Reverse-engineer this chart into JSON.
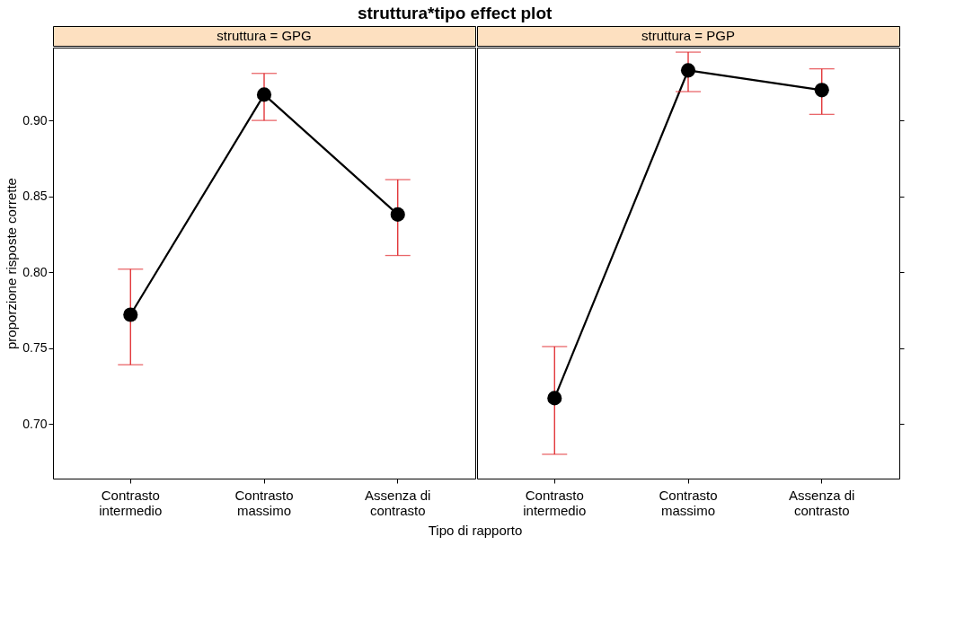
{
  "chart_data": [
    {
      "type": "line",
      "title": "struttura*tipo effect plot",
      "subtitle": "struttura = GPG",
      "xlabel": "Tipo di rapporto",
      "ylabel": "proporzione risposte corrette",
      "categories": [
        "Contrasto intermedio",
        "Contrasto massimo",
        "Assenza di contrasto"
      ],
      "series": [
        {
          "color": "#000000",
          "values": [
            0.772,
            0.917,
            0.838
          ],
          "errors": [
            [
              0.739,
              0.802
            ],
            [
              0.9,
              0.931
            ],
            [
              0.811,
              0.861
            ]
          ]
        }
      ],
      "ylim": [
        0.664,
        0.948
      ],
      "yticks": [
        {
          "value": 0.7,
          "label": "0.70"
        },
        {
          "value": 0.75,
          "label": "0.75"
        },
        {
          "value": 0.8,
          "label": "0.80"
        },
        {
          "value": 0.85,
          "label": "0.85"
        },
        {
          "value": 0.9,
          "label": "0.90"
        }
      ],
      "marker": "circle",
      "line_style": "solid",
      "grid": false,
      "legend": false
    },
    {
      "type": "line",
      "subtitle": "struttura = PGP",
      "categories": [
        "Contrasto intermedio",
        "Contrasto massimo",
        "Assenza di contrasto"
      ],
      "series": [
        {
          "color": "#000000",
          "values": [
            0.717,
            0.933,
            0.92
          ],
          "errors": [
            [
              0.68,
              0.751
            ],
            [
              0.919,
              0.945
            ],
            [
              0.904,
              0.934
            ]
          ]
        }
      ],
      "ylim": [
        0.664,
        0.948
      ],
      "yticks": [
        {
          "value": 0.7,
          "label": null
        },
        {
          "value": 0.75,
          "label": null
        },
        {
          "value": 0.8,
          "label": null
        },
        {
          "value": 0.85,
          "label": null
        },
        {
          "value": 0.9,
          "label": null
        }
      ],
      "tick_labels": "x",
      "marker": "circle",
      "line_style": "solid",
      "grid": false,
      "legend": false
    }
  ]
}
